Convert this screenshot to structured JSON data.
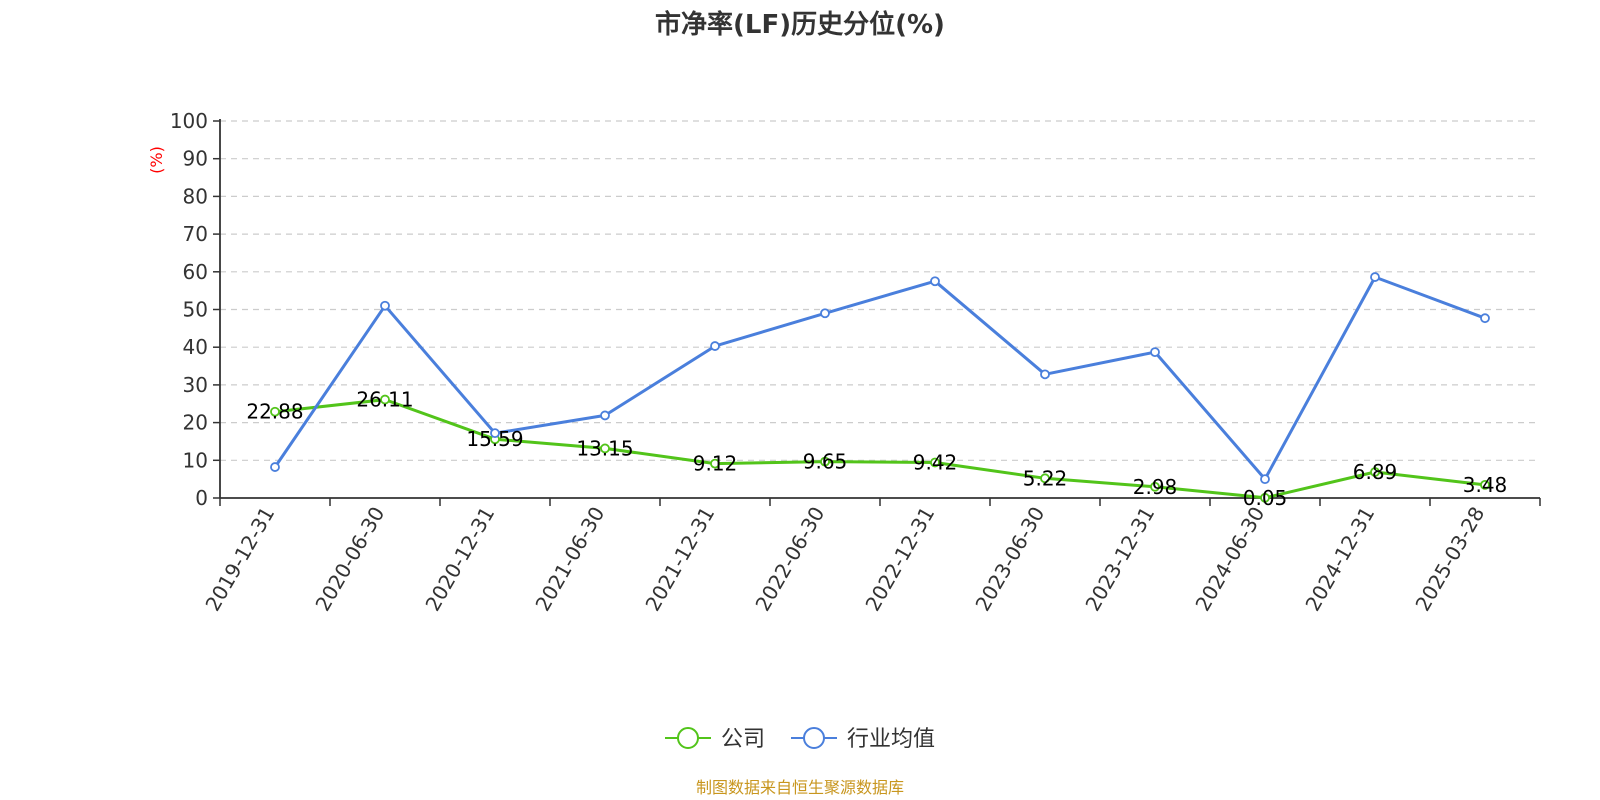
{
  "chart_data": {
    "type": "line",
    "title": "市净率(LF)历史分位(%)",
    "ylabel": "(%)",
    "ylim": [
      0,
      100
    ],
    "yticks": [
      0,
      10,
      20,
      30,
      40,
      50,
      60,
      70,
      80,
      90,
      100
    ],
    "grid": true,
    "legend_position": "bottom-center",
    "categories": [
      "2019-12-31",
      "2020-06-30",
      "2020-12-31",
      "2021-06-30",
      "2021-12-31",
      "2022-06-30",
      "2022-12-31",
      "2023-06-30",
      "2023-12-31",
      "2024-06-30",
      "2024-12-31",
      "2025-03-28"
    ],
    "series": [
      {
        "name": "公司",
        "color": "#52c41a",
        "show_labels": true,
        "values": [
          22.88,
          26.11,
          15.59,
          13.15,
          9.12,
          9.65,
          9.42,
          5.22,
          2.98,
          0.05,
          6.89,
          3.48
        ]
      },
      {
        "name": "行业均值",
        "color": "#4a7fdc",
        "show_labels": false,
        "values": [
          8.2,
          51.0,
          17.2,
          21.9,
          40.3,
          49.0,
          57.5,
          32.8,
          38.7,
          5.0,
          58.6,
          47.7
        ]
      }
    ]
  },
  "source_note": "制图数据来自恒生聚源数据库"
}
